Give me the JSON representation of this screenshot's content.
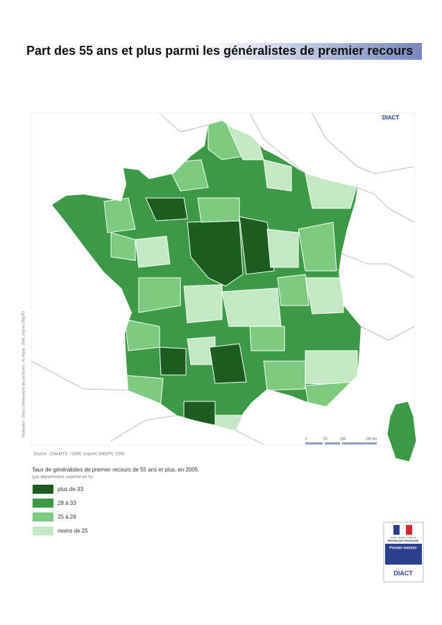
{
  "header": {
    "title": "Part des 55 ans et plus parmi les généralistes de premier recours"
  },
  "map": {
    "brand": "DIACT",
    "credit": "Réalisation : Diact | Observatoire des territoires - N. Hayat - 2006, d'après ONDPS",
    "scale": {
      "labels": [
        "0",
        "50",
        "100",
        "200 km"
      ]
    },
    "source": "Source : CNAMTS - SNIR, d'après ONDPS, 2005"
  },
  "legend": {
    "title": "Taux de généralistes de premier recours de 55 ans et plus, en 2005",
    "subtitle": "(par département, exprimé en %)",
    "items": [
      {
        "label": "plus de 33",
        "color": "#1b5e20"
      },
      {
        "label": "28 à 33",
        "color": "#3c9a47"
      },
      {
        "label": "25 à 28",
        "color": "#7dcb81"
      },
      {
        "label": "moins de 25",
        "color": "#c3e8c2"
      }
    ]
  },
  "logo": {
    "motto": "Liberté • Égalité • Fraternité",
    "republic": "RÉPUBLIQUE FRANÇAISE",
    "office": "Premier ministre",
    "name": "DIACT"
  }
}
